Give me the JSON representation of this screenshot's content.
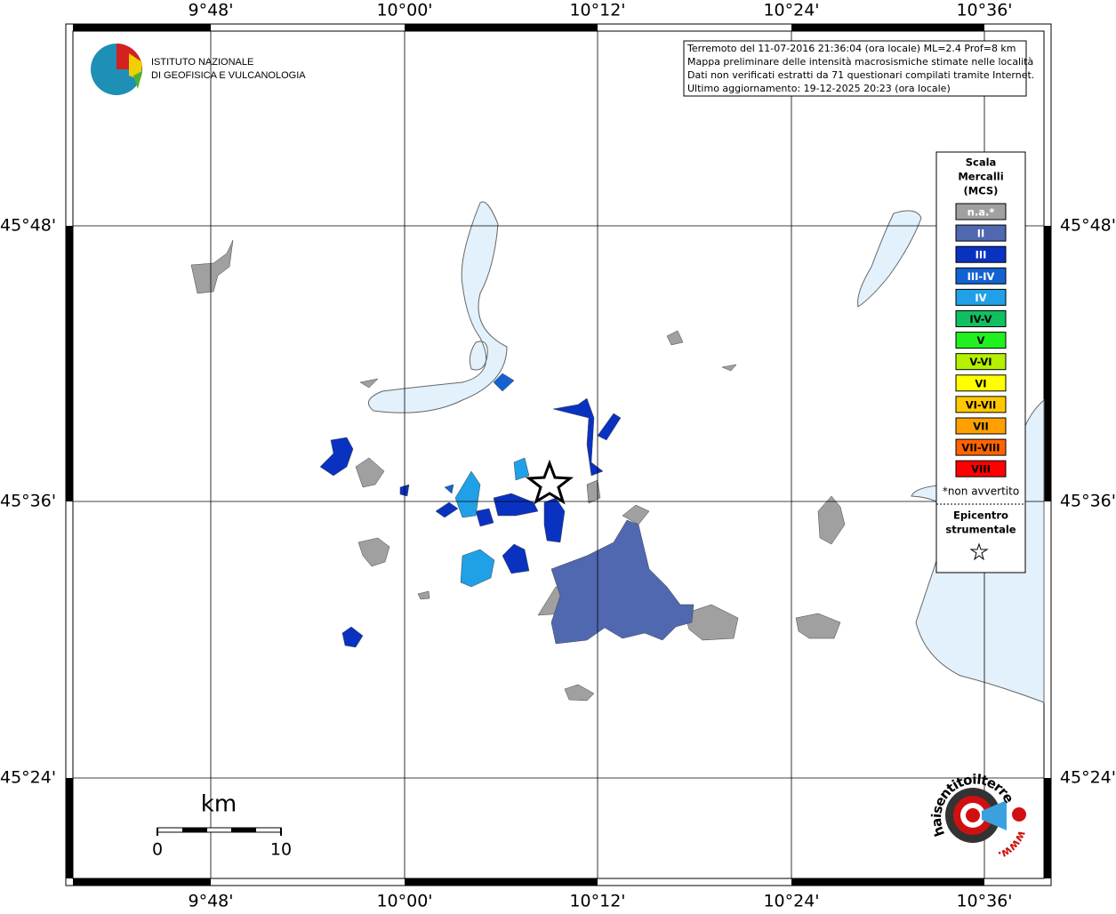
{
  "header": {
    "institute": [
      "ISTITUTO NAZIONALE",
      "DI GEOFISICA E VULCANOLOGIA"
    ]
  },
  "info": [
    "Terremoto del 11-07-2016 21:36:04 (ora locale) ML=2.4 Prof=8 km",
    "Mappa preliminare delle intensità macrosismiche stimate nelle località",
    "Dati non verificati estratti da 71 questionari compilati tramite Internet.",
    "Ultimo aggiornamento: 19-12-2025 20:23 (ora locale)"
  ],
  "map": {
    "longitudes": [
      "9°48'",
      "10°00'",
      "10°12'",
      "10°24'",
      "10°36'"
    ],
    "latitudes": [
      "45°48'",
      "45°36'",
      "45°24'"
    ]
  },
  "legend": {
    "title": [
      "Scala",
      "Mercalli",
      "(MCS)"
    ],
    "items": [
      {
        "label": "n.a.*",
        "color": "#a0a0a0"
      },
      {
        "label": "II",
        "color": "#5068b0"
      },
      {
        "label": "III",
        "color": "#0a32c0"
      },
      {
        "label": "III-IV",
        "color": "#1462d2"
      },
      {
        "label": "IV",
        "color": "#20a0e6"
      },
      {
        "label": "IV-V",
        "color": "#10c060"
      },
      {
        "label": "V",
        "color": "#20f020"
      },
      {
        "label": "V-VI",
        "color": "#b4f000"
      },
      {
        "label": "VI",
        "color": "#ffff00"
      },
      {
        "label": "VI-VII",
        "color": "#ffc800"
      },
      {
        "label": "VII",
        "color": "#ffa000"
      },
      {
        "label": "VII-VIII",
        "color": "#ff6400"
      },
      {
        "label": "VIII",
        "color": "#ff0000"
      }
    ],
    "note": "*non avvertito",
    "epicenter": [
      "Epicentro",
      "strumentale"
    ]
  },
  "scale_bar": {
    "unit": "km",
    "labels": [
      "0",
      "10"
    ]
  },
  "logo": {
    "text": "haisentitoilterremoto.it",
    "prefix": "www."
  }
}
